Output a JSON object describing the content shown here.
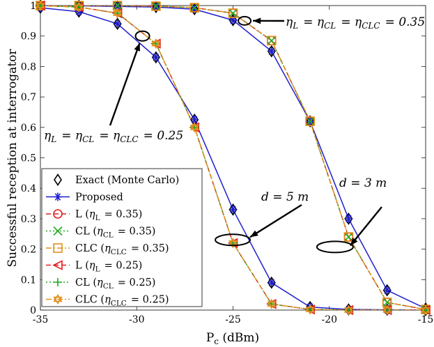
{
  "chart_data": {
    "type": "line",
    "xlabel": "P_c (dBm)",
    "ylabel": "Successful reception at interrogator",
    "xlim": [
      -35,
      -15
    ],
    "ylim": [
      0,
      1
    ],
    "xticks": [
      -35,
      -30,
      -25,
      -20,
      -15
    ],
    "xtick_labels": [
      "-35",
      "-30",
      "-25",
      "-20",
      "-15"
    ],
    "yticks": [
      0,
      0.1,
      0.2,
      0.3,
      0.4,
      0.5,
      0.6,
      0.7,
      0.8,
      0.9,
      1
    ],
    "ytick_labels": [
      "0",
      "0.1",
      "0.2",
      "0.3",
      "0.4",
      "0.5",
      "0.6",
      "0.7",
      "0.8",
      "0.9",
      "1"
    ],
    "grid": false,
    "legend_position": "bottom-left",
    "x": [
      -35,
      -33,
      -31,
      -29,
      -27,
      -25,
      -23,
      -21,
      -19,
      -17,
      -15
    ],
    "series": [
      {
        "name": "Exact (Monte Carlo)",
        "group": "d5",
        "marker": "diamond",
        "color": "#000000",
        "dash": "none",
        "values": [
          0.993,
          0.98,
          0.94,
          0.83,
          0.625,
          0.33,
          0.09,
          0.01,
          0.002,
          0.001,
          0.0
        ]
      },
      {
        "name": "Proposed",
        "group": "d5",
        "marker": "asterisk",
        "color": "#1f1fcc",
        "dash": "solid",
        "values": [
          0.993,
          0.98,
          0.94,
          0.83,
          0.625,
          0.33,
          0.09,
          0.01,
          0.002,
          0.001,
          0.0
        ]
      },
      {
        "name": "L (η_L = 0.35)",
        "group": "d3_035",
        "marker": "circle",
        "color": "#e02020",
        "dash": "dash",
        "values": [
          1.0,
          1.0,
          1.0,
          0.998,
          0.993,
          0.975,
          0.885,
          0.62,
          0.24,
          0.025,
          0.002
        ]
      },
      {
        "name": "CL (η_CL = 0.35)",
        "group": "d3_035",
        "marker": "x",
        "color": "#1faa1f",
        "dash": "dot",
        "values": [
          1.0,
          1.0,
          1.0,
          0.998,
          0.993,
          0.975,
          0.885,
          0.62,
          0.24,
          0.025,
          0.002
        ]
      },
      {
        "name": "CLC (η_CLC = 0.35)",
        "group": "d3_035",
        "marker": "square",
        "color": "#e0901a",
        "dash": "dashdot",
        "values": [
          1.0,
          1.0,
          1.0,
          0.998,
          0.993,
          0.975,
          0.885,
          0.62,
          0.24,
          0.025,
          0.002
        ]
      },
      {
        "name": "L (η_L = 0.25)",
        "group": "d5_025",
        "marker": "triangle-left",
        "color": "#e02020",
        "dash": "dash",
        "values": [
          1.0,
          0.995,
          0.975,
          0.875,
          0.6,
          0.22,
          0.02,
          0.002,
          0.0,
          0.0,
          0.0
        ]
      },
      {
        "name": "CL (η_CL = 0.25)",
        "group": "d5_025",
        "marker": "plus",
        "color": "#1faa1f",
        "dash": "dot",
        "values": [
          1.0,
          0.995,
          0.975,
          0.875,
          0.6,
          0.22,
          0.02,
          0.002,
          0.0,
          0.0,
          0.0
        ]
      },
      {
        "name": "CLC (η_CLC = 0.25)",
        "group": "d5_025",
        "marker": "hexagram",
        "color": "#e0901a",
        "dash": "dashdot",
        "values": [
          1.0,
          0.995,
          0.975,
          0.875,
          0.6,
          0.22,
          0.02,
          0.002,
          0.0,
          0.0,
          0.0
        ]
      }
    ],
    "extra_curves": [
      {
        "name": "Exact (Monte Carlo) d=3",
        "marker": "diamond",
        "color": "#000000",
        "dash": "none",
        "values": [
          1.0,
          0.999,
          0.997,
          0.995,
          0.988,
          0.952,
          0.85,
          0.62,
          0.3,
          0.065,
          0.005
        ]
      },
      {
        "name": "Proposed d=3",
        "marker": "asterisk",
        "color": "#1f1fcc",
        "dash": "solid",
        "values": [
          1.0,
          0.999,
          0.997,
          0.995,
          0.988,
          0.952,
          0.85,
          0.62,
          0.3,
          0.065,
          0.005
        ]
      }
    ],
    "legend": [
      "Exact (Monte Carlo)",
      "Proposed",
      "L (η_L = 0.35)",
      "CL (η_CL = 0.35)",
      "CLC (η_CLC = 0.35)",
      "L (η_L = 0.25)",
      "CL (η_CL = 0.25)",
      "CLC (η_CLC = 0.25)"
    ],
    "annotations": [
      {
        "text": "η_L = η_CL = η_CLC = 0.35",
        "target_x": -24.4,
        "target_y": 0.95
      },
      {
        "text": "η_L = η_CL = η_CLC = 0.25",
        "target_x": -29.7,
        "target_y": 0.9
      },
      {
        "text": "d = 3 m",
        "target_x": -18.8,
        "target_y": 0.205
      },
      {
        "text": "d = 5 m",
        "target_x": -24.8,
        "target_y": 0.235
      }
    ]
  }
}
